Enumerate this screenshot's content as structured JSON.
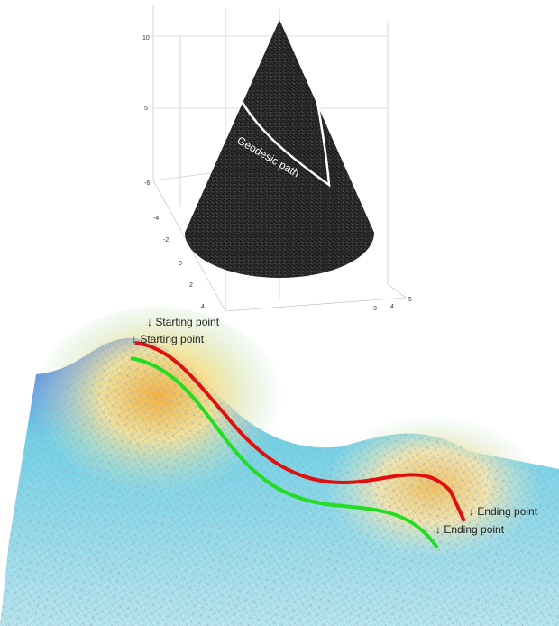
{
  "cone_plot": {
    "z_ticks": [
      "10",
      "5"
    ],
    "y_ticks": [
      "-6",
      "-4",
      "-2",
      "0",
      "2",
      "4"
    ],
    "x_ticks": [
      "5",
      "4",
      "3"
    ],
    "path_label": "Geodesic path"
  },
  "surface_plot": {
    "start_labels": [
      "↓ Starting point",
      "↓ Starting point"
    ],
    "end_labels": [
      "↓ Ending point",
      "↓ Ending point"
    ]
  }
}
